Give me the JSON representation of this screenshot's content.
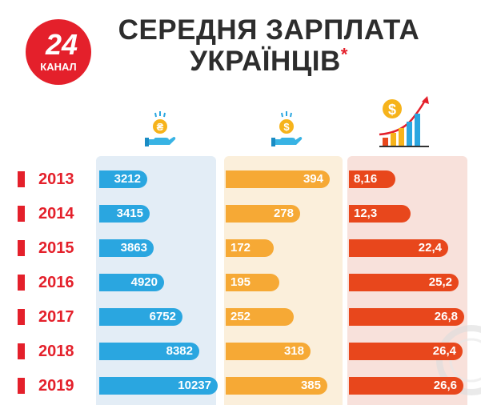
{
  "logo": {
    "number": "24",
    "word": "КАНАЛ",
    "color": "#e4202b"
  },
  "title": {
    "line1": "СЕРЕДНЯ ЗАРПЛАТА",
    "line2": "УКРАЇНЦІВ",
    "asterisk": "*"
  },
  "icons": [
    "hand-hryvnia-coin-icon",
    "hand-dollar-coin-icon",
    "growth-chart-dollar-icon"
  ],
  "colors": {
    "year": "#e4202b",
    "blue": "#2aa6e0",
    "orange": "#f6a935",
    "red": "#e8471c"
  },
  "chart_data": {
    "type": "bar",
    "categories": [
      "2013",
      "2014",
      "2015",
      "2016",
      "2017",
      "2018",
      "2019"
    ],
    "series": [
      {
        "values": [
          3212,
          3415,
          3863,
          4920,
          6752,
          8382,
          10237
        ],
        "labels": [
          "3212",
          "3415",
          "3863",
          "4920",
          "6752",
          "8382",
          "10237"
        ],
        "color": "#2aa6e0",
        "icon": "hand-hryvnia-coin-icon"
      },
      {
        "values": [
          394,
          278,
          172,
          195,
          252,
          318,
          385
        ],
        "labels": [
          "394",
          "278",
          "172",
          "195",
          "252",
          "318",
          "385"
        ],
        "color": "#f6a935",
        "icon": "hand-dollar-coin-icon"
      },
      {
        "values": [
          8.16,
          12.3,
          22.4,
          25.2,
          26.8,
          26.4,
          26.6
        ],
        "labels": [
          "8,16",
          "12,3",
          "22,4",
          "25,2",
          "26,8",
          "26,4",
          "26,6"
        ],
        "color": "#e8471c",
        "icon": "growth-chart-dollar-icon"
      }
    ]
  }
}
